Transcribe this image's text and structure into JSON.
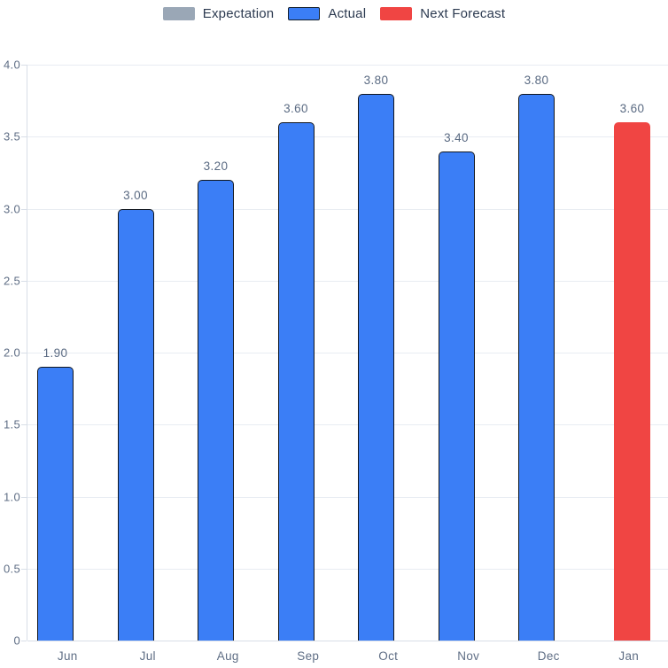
{
  "legend": {
    "items": [
      {
        "label": "Expectation",
        "color": "#9AA7B6"
      },
      {
        "label": "Actual",
        "color": "#3B7EF6",
        "border": "#14202E"
      },
      {
        "label": "Next Forecast",
        "color": "#F04543"
      }
    ]
  },
  "chart_data": {
    "type": "bar",
    "categories": [
      "Jun",
      "Jul",
      "Aug",
      "Sep",
      "Oct",
      "Nov",
      "Dec",
      "Jan"
    ],
    "series": [
      {
        "name": "Expectation",
        "color": "#9AA7B6",
        "values": [
          null,
          null,
          null,
          null,
          null,
          null,
          null,
          null
        ]
      },
      {
        "name": "Actual",
        "color": "#3B7EF6",
        "border_color": "#10161F",
        "values": [
          1.9,
          3.0,
          3.2,
          3.6,
          3.8,
          3.4,
          3.8,
          null
        ]
      },
      {
        "name": "Next Forecast",
        "color": "#F04543",
        "values": [
          null,
          null,
          null,
          null,
          null,
          null,
          null,
          3.6
        ]
      }
    ],
    "value_labels": [
      "1.90",
      "3.00",
      "3.20",
      "3.60",
      "3.80",
      "3.40",
      "3.80",
      "3.60"
    ],
    "title": "",
    "xlabel": "",
    "ylabel": "",
    "ylim": [
      0,
      4
    ],
    "ytick_step": 0.5,
    "ytick_labels": [
      "4.0",
      "3.5",
      "3.0",
      "2.5",
      "2.0",
      "1.5",
      "1.0",
      "0.5",
      "0"
    ],
    "grid": true,
    "legend_position": "top",
    "colors": {
      "grid": "#E8ECF2",
      "axis": "#D8DEE7",
      "axis_label": "#5F6E85",
      "value_label": "#5A6A82",
      "legend_text": "#2C3A50",
      "background": "#FFFFFF"
    }
  }
}
